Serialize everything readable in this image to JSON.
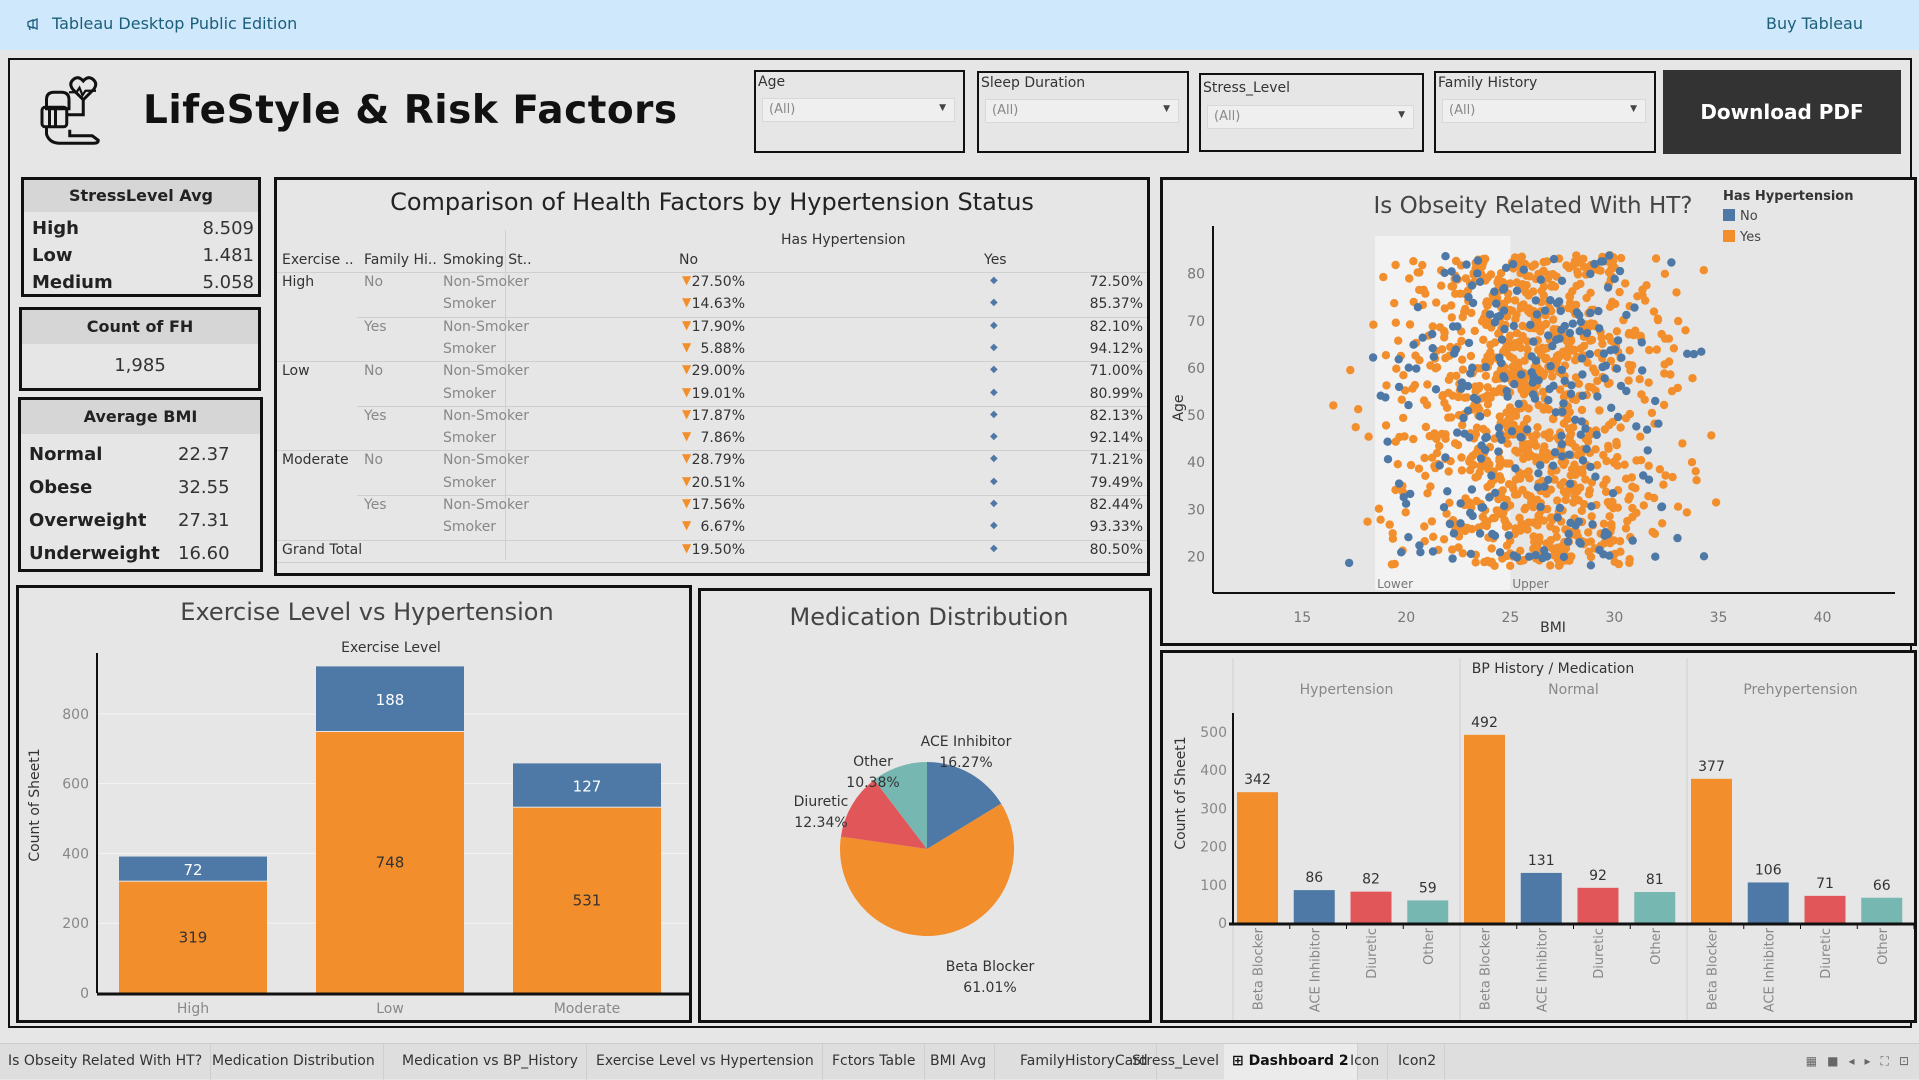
{
  "app": {
    "edition_label": "Tableau Desktop Public Edition",
    "buy_label": "Buy Tableau",
    "edition_icon": "megaphone-icon"
  },
  "header": {
    "title": "LifeStyle & Risk Factors",
    "logo_icon": "blood-pressure-heart-icon",
    "download_label": "Download PDF"
  },
  "filters": [
    {
      "label": "Age",
      "value": "(All)"
    },
    {
      "label": "Sleep Duration",
      "value": "(All)"
    },
    {
      "label": "Stress_Level",
      "value": "(All)"
    },
    {
      "label": "Family History",
      "value": "(All)"
    }
  ],
  "stress_card": {
    "title": "StressLevel Avg",
    "rows": [
      {
        "label": "High",
        "value": "8.509"
      },
      {
        "label": "Low",
        "value": "1.481"
      },
      {
        "label": "Medium",
        "value": "5.058"
      }
    ]
  },
  "fh_card": {
    "title": "Count of FH",
    "value": "1,985"
  },
  "bmi_card": {
    "title": "Average BMI",
    "rows": [
      {
        "label": "Normal",
        "value": "22.37"
      },
      {
        "label": "Obese",
        "value": "32.55"
      },
      {
        "label": "Overweight",
        "value": "27.31"
      },
      {
        "label": "Underweight",
        "value": "16.60"
      }
    ]
  },
  "factors_table": {
    "title": "Comparison of Health Factors by Hypertension Status",
    "column_group": "Has Hypertension",
    "row_headers": [
      "Exercise ..",
      "Family Hi..",
      "Smoking St.."
    ],
    "columns": [
      "No",
      "Yes"
    ],
    "no_icon": "down-triangle-icon",
    "yes_icon": "up-indicator-icon",
    "rows": [
      {
        "exercise": "High",
        "family": "No",
        "smoking": "Non-Smoker",
        "no": "27.50%",
        "yes": "72.50%"
      },
      {
        "exercise": "",
        "family": "",
        "smoking": "Smoker",
        "no": "14.63%",
        "yes": "85.37%"
      },
      {
        "exercise": "",
        "family": "Yes",
        "smoking": "Non-Smoker",
        "no": "17.90%",
        "yes": "82.10%"
      },
      {
        "exercise": "",
        "family": "",
        "smoking": "Smoker",
        "no": "5.88%",
        "yes": "94.12%"
      },
      {
        "exercise": "Low",
        "family": "No",
        "smoking": "Non-Smoker",
        "no": "29.00%",
        "yes": "71.00%"
      },
      {
        "exercise": "",
        "family": "",
        "smoking": "Smoker",
        "no": "19.01%",
        "yes": "80.99%"
      },
      {
        "exercise": "",
        "family": "Yes",
        "smoking": "Non-Smoker",
        "no": "17.87%",
        "yes": "82.13%"
      },
      {
        "exercise": "",
        "family": "",
        "smoking": "Smoker",
        "no": "7.86%",
        "yes": "92.14%"
      },
      {
        "exercise": "Moderate",
        "family": "No",
        "smoking": "Non-Smoker",
        "no": "28.79%",
        "yes": "71.21%"
      },
      {
        "exercise": "",
        "family": "",
        "smoking": "Smoker",
        "no": "20.51%",
        "yes": "79.49%"
      },
      {
        "exercise": "",
        "family": "Yes",
        "smoking": "Non-Smoker",
        "no": "17.56%",
        "yes": "82.44%"
      },
      {
        "exercise": "",
        "family": "",
        "smoking": "Smoker",
        "no": "6.67%",
        "yes": "93.33%"
      },
      {
        "exercise": "Grand Total",
        "family": "",
        "smoking": "",
        "no": "19.50%",
        "yes": "80.50%"
      }
    ]
  },
  "colors": {
    "no": "#4e79a7",
    "yes": "#f28e2b",
    "diuretic": "#e15759",
    "other": "#76b7b2",
    "download_bg": "#333333",
    "topbar_bg": "#cfe8fb"
  },
  "chart_data": [
    {
      "id": "scatter",
      "type": "scatter",
      "title": "Is Obseity Related With HT?",
      "xlabel": "BMI",
      "ylabel": "Age",
      "xlim": [
        11,
        43
      ],
      "ylim": [
        15,
        88
      ],
      "xticks": [
        15,
        20,
        25,
        30,
        35,
        40
      ],
      "yticks": [
        20,
        30,
        40,
        50,
        60,
        70,
        80
      ],
      "legend": {
        "title": "Has Hypertension",
        "entries": [
          "No",
          "Yes"
        ],
        "placement": "top-right"
      },
      "reference_band": {
        "from": 18.5,
        "to": 25,
        "lower_label": "Lower",
        "upper_label": "Upper"
      },
      "point_count_estimate": 1985,
      "series": [
        {
          "name": "No",
          "x_range": [
            12,
            36
          ],
          "y_range": [
            18,
            84
          ],
          "approx_count": 400
        },
        {
          "name": "Yes",
          "x_range": [
            12,
            42
          ],
          "y_range": [
            18,
            84
          ],
          "approx_count": 1585
        }
      ],
      "grid": false
    },
    {
      "id": "exercise",
      "type": "bar",
      "stacked": true,
      "title": "Exercise Level vs Hypertension",
      "header": "Exercise Level",
      "categories": [
        "High",
        "Low",
        "Moderate"
      ],
      "series": [
        {
          "name": "Yes",
          "values": [
            319,
            748,
            531
          ]
        },
        {
          "name": "No",
          "values": [
            72,
            188,
            127
          ]
        }
      ],
      "ylabel": "Count of Sheet1",
      "ylim": [
        0,
        960
      ],
      "yticks": [
        0,
        200,
        400,
        600,
        800
      ],
      "grid": true
    },
    {
      "id": "medication",
      "type": "pie",
      "title": "Medication Distribution",
      "slices": [
        {
          "label": "ACE Inhibitor",
          "value": 16.27,
          "display": "16.27%"
        },
        {
          "label": "Beta Blocker",
          "value": 61.01,
          "display": "61.01%"
        },
        {
          "label": "Diuretic",
          "value": 12.34,
          "display": "12.34%"
        },
        {
          "label": "Other",
          "value": 10.38,
          "display": "10.38%"
        }
      ]
    },
    {
      "id": "bp_history",
      "type": "bar",
      "title": "BP History / Medication",
      "groups": [
        "Hypertension",
        "Normal",
        "Prehypertension"
      ],
      "categories": [
        "Beta Blocker",
        "ACE Inhibitor",
        "Diuretic",
        "Other"
      ],
      "series": [
        {
          "group": "Hypertension",
          "values": [
            342,
            86,
            82,
            59
          ]
        },
        {
          "group": "Normal",
          "values": [
            492,
            131,
            92,
            81
          ]
        },
        {
          "group": "Prehypertension",
          "values": [
            377,
            106,
            71,
            66
          ]
        }
      ],
      "ylabel": "Count of Sheet1",
      "ylim": [
        0,
        570
      ],
      "yticks": [
        0,
        100,
        200,
        300,
        400,
        500
      ],
      "grid": false
    }
  ],
  "tabs": [
    {
      "label": "Is Obseity Related With HT?",
      "active": false
    },
    {
      "label": "Medication Distribution",
      "active": false
    },
    {
      "label": "Medication vs BP_History",
      "active": false
    },
    {
      "label": "Exercise Level vs Hypertension",
      "active": false
    },
    {
      "label": "Fctors Table",
      "active": false
    },
    {
      "label": "BMI Avg",
      "active": false
    },
    {
      "label": "FamilyHistoryCard",
      "active": false
    },
    {
      "label": "Stress_Level",
      "active": false
    },
    {
      "label": "Dashboard 2",
      "active": true
    },
    {
      "label": "Icon",
      "active": false
    },
    {
      "label": "Icon2",
      "active": false
    }
  ]
}
